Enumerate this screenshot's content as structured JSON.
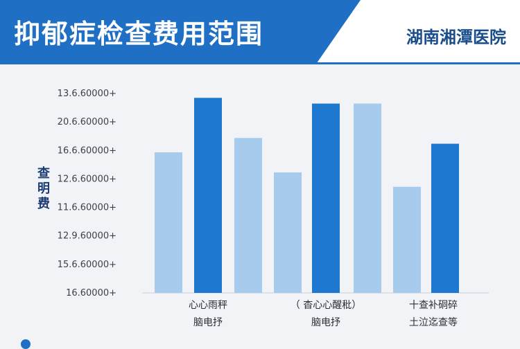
{
  "header": {
    "title": "抑郁症检查费用范围",
    "hospital": "湖南湘潭医院"
  },
  "colors": {
    "banner": "#1f6fc4",
    "light_bar": "#a6cbec",
    "dark_bar": "#1e78cf",
    "axis_text": "#3a3f4a"
  },
  "chart_data": {
    "type": "bar",
    "ylabel": "查\n明\n费",
    "ytick_labels": [
      "13.6.60000+",
      "20.6.60000+",
      "16.6.60000+",
      "12.6.60000+",
      "11.6.60000+",
      "12.9.60000+",
      "15.6.60000+",
      "16.60000+"
    ],
    "ylim": [
      0,
      7
    ],
    "groups": [
      {
        "label_line1": "心心雨秤",
        "label_line2": "脑电抒"
      },
      {
        "label_line1": "（    杳心心醒秕）",
        "label_line2": "脑电抒"
      },
      {
        "label_line1": "十查补硐碎",
        "label_line2": "土泣迄查等"
      }
    ],
    "bars": [
      {
        "group": 0,
        "shade": "light",
        "value": 4.9
      },
      {
        "group": 0,
        "shade": "dark",
        "value": 6.8
      },
      {
        "group": 0,
        "shade": "light",
        "value": 5.4
      },
      {
        "group": 1,
        "shade": "light",
        "value": 4.2
      },
      {
        "group": 1,
        "shade": "dark",
        "value": 6.6
      },
      {
        "group": 1,
        "shade": "light",
        "value": 6.6
      },
      {
        "group": 2,
        "shade": "light",
        "value": 3.7
      },
      {
        "group": 2,
        "shade": "dark",
        "value": 5.2
      }
    ]
  }
}
